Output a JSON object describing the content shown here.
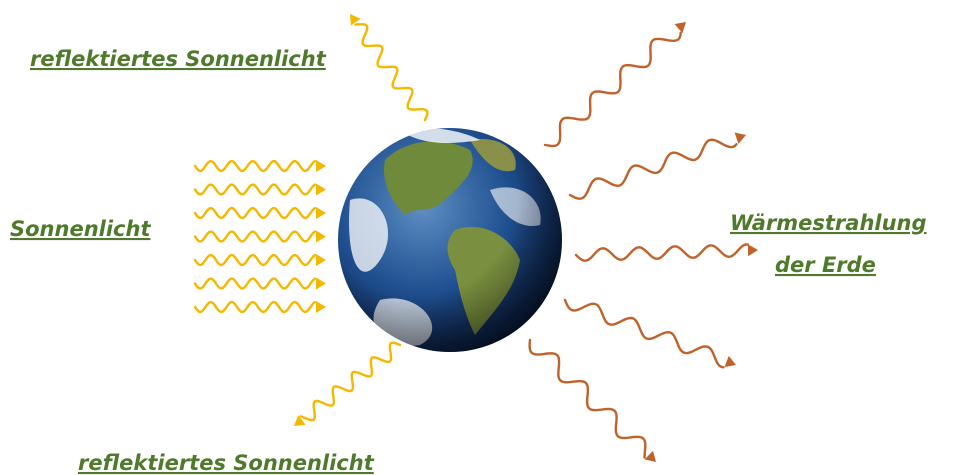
{
  "labels": {
    "reflected_top": "reflektiertes Sonnenlicht",
    "sunlight": "Sonnenlicht",
    "heat_line1": "Wärmestrahlung",
    "heat_line2": "der Erde",
    "reflected_bottom": "reflektiertes Sonnenlicht"
  }
}
